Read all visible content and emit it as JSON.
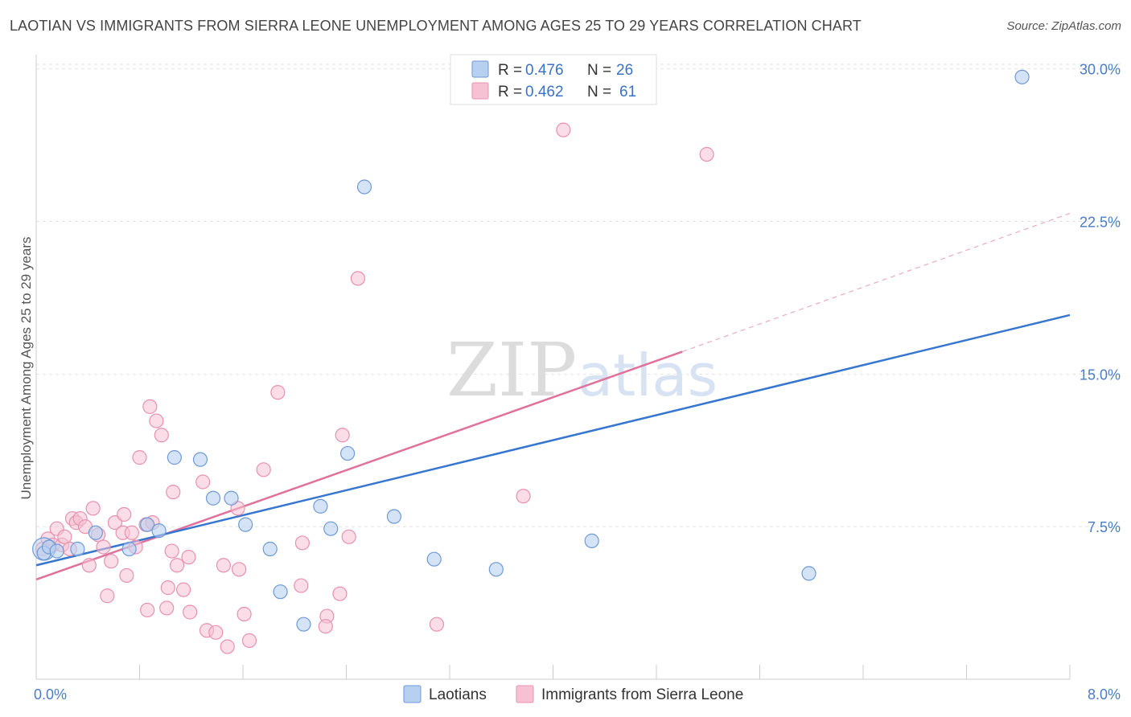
{
  "header": {
    "title": "LAOTIAN VS IMMIGRANTS FROM SIERRA LEONE UNEMPLOYMENT AMONG AGES 25 TO 29 YEARS CORRELATION CHART",
    "source": "Source: ZipAtlas.com"
  },
  "watermark": {
    "zip": "ZIP",
    "atlas": "atlas"
  },
  "colors": {
    "laotians_fill": "#b8d0f0",
    "laotians_stroke": "#6e9ad8",
    "laotians_line": "#3676d0",
    "sl_fill": "#f6c1d2",
    "sl_stroke": "#e891ae",
    "sl_line": "#e0719a"
  },
  "chart_data": {
    "type": "scatter",
    "title": "LAOTIAN VS IMMIGRANTS FROM SIERRA LEONE UNEMPLOYMENT AMONG AGES 25 TO 29 YEARS CORRELATION CHART",
    "ylabel": "Unemployment Among Ages 25 to 29 years",
    "xlabel": "",
    "xlim": [
      0,
      8
    ],
    "ylim": [
      0,
      30.7
    ],
    "x_tick_labels": [
      "0.0%",
      "8.0%"
    ],
    "y_ticks": [
      {
        "value": 7.5,
        "label": "7.5%"
      },
      {
        "value": 15.0,
        "label": "15.0%"
      },
      {
        "value": 22.5,
        "label": "22.5%"
      },
      {
        "value": 30.0,
        "label": "30.0%"
      }
    ],
    "legend": [
      {
        "series": "Laotians",
        "r_label": "R =",
        "r": "0.476",
        "n_label": "N =",
        "n": "26"
      },
      {
        "series": "Immigrants from Sierra Leone",
        "r_label": "R =",
        "r": "0.462",
        "n_label": "N =",
        "n": "61"
      }
    ],
    "series": [
      {
        "name": "Laotians",
        "trend": {
          "x0": 0,
          "y0": 5.6,
          "x1": 8.0,
          "y1": 17.9
        },
        "points": [
          [
            0.06,
            6.2
          ],
          [
            0.1,
            6.5
          ],
          [
            0.16,
            6.3
          ],
          [
            0.32,
            6.4
          ],
          [
            0.46,
            7.2
          ],
          [
            0.72,
            6.4
          ],
          [
            0.86,
            7.6
          ],
          [
            0.95,
            7.3
          ],
          [
            1.07,
            10.9
          ],
          [
            1.27,
            10.8
          ],
          [
            1.37,
            8.9
          ],
          [
            1.51,
            8.9
          ],
          [
            1.62,
            7.6
          ],
          [
            1.81,
            6.4
          ],
          [
            1.89,
            4.3
          ],
          [
            2.07,
            2.7
          ],
          [
            2.2,
            8.5
          ],
          [
            2.28,
            7.4
          ],
          [
            2.41,
            11.1
          ],
          [
            2.54,
            24.2
          ],
          [
            2.77,
            8.0
          ],
          [
            3.08,
            5.9
          ],
          [
            3.56,
            5.4
          ],
          [
            4.3,
            6.8
          ],
          [
            5.98,
            5.2
          ],
          [
            7.63,
            29.6
          ]
        ]
      },
      {
        "name": "Immigrants from Sierra Leone",
        "trend": {
          "x0": 0,
          "y0": 4.9,
          "x1": 5.0,
          "y1": 16.1
        },
        "trend_extended": {
          "x0": 5.0,
          "y0": 16.1,
          "x1": 8.0,
          "y1": 22.9
        },
        "points": [
          [
            0.05,
            6.4
          ],
          [
            0.09,
            6.9
          ],
          [
            0.13,
            6.6
          ],
          [
            0.16,
            7.4
          ],
          [
            0.2,
            6.6
          ],
          [
            0.22,
            7.0
          ],
          [
            0.26,
            6.4
          ],
          [
            0.28,
            7.9
          ],
          [
            0.31,
            7.7
          ],
          [
            0.34,
            7.9
          ],
          [
            0.38,
            7.5
          ],
          [
            0.41,
            5.6
          ],
          [
            0.44,
            8.4
          ],
          [
            0.48,
            7.1
          ],
          [
            0.52,
            6.5
          ],
          [
            0.55,
            4.1
          ],
          [
            0.58,
            5.8
          ],
          [
            0.61,
            7.7
          ],
          [
            0.67,
            7.2
          ],
          [
            0.68,
            8.1
          ],
          [
            0.7,
            5.1
          ],
          [
            0.74,
            7.2
          ],
          [
            0.77,
            6.5
          ],
          [
            0.8,
            10.9
          ],
          [
            0.85,
            7.6
          ],
          [
            0.86,
            3.4
          ],
          [
            0.88,
            13.4
          ],
          [
            0.9,
            7.7
          ],
          [
            0.93,
            12.7
          ],
          [
            0.97,
            12.0
          ],
          [
            1.01,
            3.5
          ],
          [
            1.02,
            4.5
          ],
          [
            1.05,
            6.3
          ],
          [
            1.06,
            9.2
          ],
          [
            1.09,
            5.6
          ],
          [
            1.14,
            4.4
          ],
          [
            1.18,
            6.0
          ],
          [
            1.19,
            3.3
          ],
          [
            1.29,
            9.7
          ],
          [
            1.32,
            2.4
          ],
          [
            1.39,
            2.3
          ],
          [
            1.45,
            5.6
          ],
          [
            1.48,
            1.6
          ],
          [
            1.56,
            8.4
          ],
          [
            1.57,
            5.4
          ],
          [
            1.61,
            3.2
          ],
          [
            1.65,
            1.9
          ],
          [
            1.76,
            10.3
          ],
          [
            1.87,
            14.1
          ],
          [
            2.05,
            4.6
          ],
          [
            2.06,
            6.7
          ],
          [
            2.25,
            3.1
          ],
          [
            2.35,
            4.2
          ],
          [
            2.37,
            12.0
          ],
          [
            2.42,
            7.0
          ],
          [
            2.49,
            19.7
          ],
          [
            3.1,
            2.7
          ],
          [
            3.77,
            9.0
          ],
          [
            4.08,
            27.0
          ],
          [
            5.19,
            25.8
          ],
          [
            2.24,
            2.6
          ]
        ]
      }
    ]
  }
}
